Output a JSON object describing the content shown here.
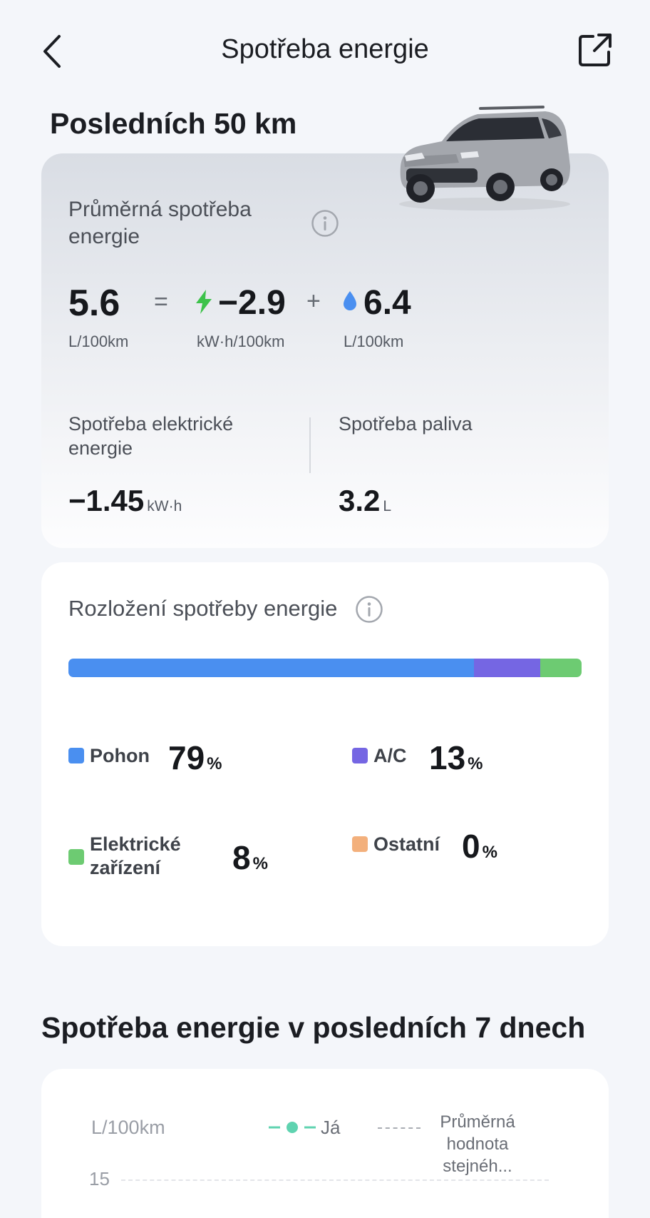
{
  "header": {
    "title": "Spotřeba energie",
    "back_icon": "chevron-left-icon",
    "share_icon": "share-external-icon"
  },
  "summary": {
    "section_title": "Posledních 50 km",
    "avg_label": "Průměrná spotřeba energie",
    "total_value": "5.6",
    "total_unit": "L/100km",
    "equals": "=",
    "electric_value": "−2.9",
    "electric_unit": "kW·h/100km",
    "plus": "+",
    "fuel_value": "6.4",
    "fuel_unit": "L/100km",
    "elec_consumption_label": "Spotřeba elektrické energie",
    "elec_consumption_value": "−1.45",
    "elec_consumption_unit": "kW·h",
    "fuel_consumption_label": "Spotřeba paliva",
    "fuel_consumption_value": "3.2",
    "fuel_consumption_unit": "L"
  },
  "distribution": {
    "title": "Rozložení spotřeby energie",
    "items": [
      {
        "label": "Pohon",
        "value": "79",
        "pct": "%",
        "share": 79,
        "color": "#4a8ff0"
      },
      {
        "label": "A/C",
        "value": "13",
        "pct": "%",
        "share": 13,
        "color": "#7566e3"
      },
      {
        "label": "Elektrické zařízení",
        "value": "8",
        "pct": "%",
        "share": 8,
        "color": "#6dcb72"
      },
      {
        "label": "Ostatní",
        "value": "0",
        "pct": "%",
        "share": 0,
        "color": "#f3b07c"
      }
    ]
  },
  "week": {
    "title": "Spotřeba energie v posledních 7 dnech",
    "y_unit": "L/100km",
    "legend_me": "Já",
    "legend_avg": "Průměrná hodnota stejnéh...",
    "tick_15": "15",
    "me_color": "#5fd3b0"
  },
  "colors": {
    "electric_icon": "#3cc24a",
    "fuel_icon": "#4a8ff0"
  }
}
